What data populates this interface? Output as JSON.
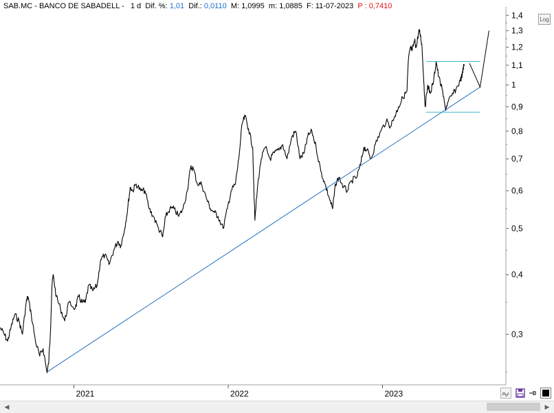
{
  "header": {
    "symbol": "SAB.MC - BANCO DE SABADELL -",
    "interval": "1 d",
    "dif_pct_label": "Dif. %:",
    "dif_pct_value": "1,01",
    "dif_label": "Dif.:",
    "dif_value": "0,0110",
    "max_label": "M:",
    "max_value": "1,0995",
    "min_label": "m:",
    "min_value": "1,0885",
    "date_label": "F:",
    "date_value": "11-07-2023",
    "p_label": "P :",
    "p_value": "0,7410"
  },
  "controls": {
    "log_button": "Log"
  },
  "colors": {
    "price_line": "#000000",
    "trendline": "#1f6fbf",
    "channel_lines": "#3fb8c6",
    "dif_value": "#1a6fd6",
    "p_value": "#e01010",
    "axis": "#a0a0a0"
  },
  "icons": {
    "zoom": "wave-icon",
    "save": "floppy-icon",
    "pin": "pin-icon",
    "color": "black-square-icon",
    "scroll_left": "chevron-left-icon",
    "scroll_right": "chevron-right-icon"
  },
  "chart_data": {
    "type": "line",
    "title": "",
    "xlabel": "",
    "ylabel": "",
    "yscale": "log",
    "ylim": [
      0.235,
      1.42
    ],
    "xlim": [
      "2020-07-10",
      "2023-10-20"
    ],
    "x_ticks": [
      "2021",
      "2022",
      "2023"
    ],
    "y_ticks": [
      "0,3",
      "0,4",
      "0,5",
      "0,6",
      "0,7",
      "0,8",
      "0,9",
      "1",
      "1,1",
      "1,2",
      "1,3",
      "1,4"
    ],
    "grid": false,
    "series": [
      {
        "points": [
          [
            "2020-07-10",
            0.31
          ],
          [
            "2020-07-20",
            0.3
          ],
          [
            "2020-07-28",
            0.29
          ],
          [
            "2020-08-05",
            0.31
          ],
          [
            "2020-08-14",
            0.33
          ],
          [
            "2020-08-24",
            0.32
          ],
          [
            "2020-09-01",
            0.3
          ],
          [
            "2020-09-10",
            0.35
          ],
          [
            "2020-09-14",
            0.36
          ],
          [
            "2020-09-22",
            0.33
          ],
          [
            "2020-10-02",
            0.29
          ],
          [
            "2020-10-12",
            0.27
          ],
          [
            "2020-10-20",
            0.28
          ],
          [
            "2020-10-29",
            0.25
          ],
          [
            "2020-11-02",
            0.26
          ],
          [
            "2020-11-06",
            0.3
          ],
          [
            "2020-11-10",
            0.38
          ],
          [
            "2020-11-13",
            0.4
          ],
          [
            "2020-11-20",
            0.36
          ],
          [
            "2020-11-30",
            0.34
          ],
          [
            "2020-12-10",
            0.32
          ],
          [
            "2020-12-20",
            0.35
          ],
          [
            "2021-01-04",
            0.34
          ],
          [
            "2021-01-12",
            0.36
          ],
          [
            "2021-01-20",
            0.35
          ],
          [
            "2021-01-28",
            0.35
          ],
          [
            "2021-02-05",
            0.38
          ],
          [
            "2021-02-15",
            0.37
          ],
          [
            "2021-02-25",
            0.38
          ],
          [
            "2021-03-05",
            0.43
          ],
          [
            "2021-03-15",
            0.44
          ],
          [
            "2021-03-25",
            0.42
          ],
          [
            "2021-04-05",
            0.45
          ],
          [
            "2021-04-15",
            0.47
          ],
          [
            "2021-04-22",
            0.46
          ],
          [
            "2021-05-01",
            0.5
          ],
          [
            "2021-05-08",
            0.55
          ],
          [
            "2021-05-14",
            0.61
          ],
          [
            "2021-05-20",
            0.6
          ],
          [
            "2021-05-28",
            0.62
          ],
          [
            "2021-06-08",
            0.6
          ],
          [
            "2021-06-18",
            0.6
          ],
          [
            "2021-06-28",
            0.55
          ],
          [
            "2021-07-08",
            0.53
          ],
          [
            "2021-07-20",
            0.5
          ],
          [
            "2021-07-30",
            0.48
          ],
          [
            "2021-08-06",
            0.53
          ],
          [
            "2021-08-16",
            0.55
          ],
          [
            "2021-08-26",
            0.55
          ],
          [
            "2021-09-06",
            0.53
          ],
          [
            "2021-09-16",
            0.55
          ],
          [
            "2021-09-26",
            0.6
          ],
          [
            "2021-10-04",
            0.67
          ],
          [
            "2021-10-10",
            0.67
          ],
          [
            "2021-10-20",
            0.62
          ],
          [
            "2021-10-30",
            0.62
          ],
          [
            "2021-11-10",
            0.58
          ],
          [
            "2021-11-20",
            0.55
          ],
          [
            "2021-11-30",
            0.54
          ],
          [
            "2021-12-08",
            0.53
          ],
          [
            "2021-12-20",
            0.5
          ],
          [
            "2021-12-30",
            0.55
          ],
          [
            "2022-01-08",
            0.6
          ],
          [
            "2022-01-18",
            0.62
          ],
          [
            "2022-01-26",
            0.7
          ],
          [
            "2022-02-03",
            0.83
          ],
          [
            "2022-02-10",
            0.86
          ],
          [
            "2022-02-18",
            0.81
          ],
          [
            "2022-02-28",
            0.74
          ],
          [
            "2022-03-05",
            0.52
          ],
          [
            "2022-03-12",
            0.62
          ],
          [
            "2022-03-20",
            0.7
          ],
          [
            "2022-03-30",
            0.74
          ],
          [
            "2022-04-10",
            0.7
          ],
          [
            "2022-04-20",
            0.72
          ],
          [
            "2022-05-01",
            0.73
          ],
          [
            "2022-05-10",
            0.75
          ],
          [
            "2022-05-20",
            0.7
          ],
          [
            "2022-06-01",
            0.78
          ],
          [
            "2022-06-10",
            0.8
          ],
          [
            "2022-06-20",
            0.7
          ],
          [
            "2022-06-30",
            0.72
          ],
          [
            "2022-07-08",
            0.78
          ],
          [
            "2022-07-18",
            0.8
          ],
          [
            "2022-07-28",
            0.74
          ],
          [
            "2022-08-08",
            0.66
          ],
          [
            "2022-08-18",
            0.62
          ],
          [
            "2022-08-28",
            0.58
          ],
          [
            "2022-09-05",
            0.55
          ],
          [
            "2022-09-12",
            0.62
          ],
          [
            "2022-09-20",
            0.64
          ],
          [
            "2022-10-01",
            0.61
          ],
          [
            "2022-10-10",
            0.6
          ],
          [
            "2022-10-20",
            0.63
          ],
          [
            "2022-11-01",
            0.64
          ],
          [
            "2022-11-10",
            0.68
          ],
          [
            "2022-11-18",
            0.74
          ],
          [
            "2022-11-25",
            0.73
          ],
          [
            "2022-12-05",
            0.7
          ],
          [
            "2022-12-15",
            0.75
          ],
          [
            "2022-12-28",
            0.8
          ],
          [
            "2023-01-10",
            0.84
          ],
          [
            "2023-01-20",
            0.82
          ],
          [
            "2023-01-30",
            0.86
          ],
          [
            "2023-02-08",
            0.9
          ],
          [
            "2023-02-18",
            0.94
          ],
          [
            "2023-02-28",
            0.97
          ],
          [
            "2023-03-03",
            1.12
          ],
          [
            "2023-03-08",
            1.2
          ],
          [
            "2023-03-12",
            1.18
          ],
          [
            "2023-03-18",
            1.24
          ],
          [
            "2023-03-22",
            1.2
          ],
          [
            "2023-03-28",
            1.3
          ],
          [
            "2023-03-31",
            1.28
          ],
          [
            "2023-04-04",
            1.22
          ],
          [
            "2023-04-08",
            1.05
          ],
          [
            "2023-04-12",
            0.9
          ],
          [
            "2023-04-18",
            1.0
          ],
          [
            "2023-04-24",
            0.96
          ],
          [
            "2023-05-02",
            1.02
          ],
          [
            "2023-05-08",
            1.12
          ],
          [
            "2023-05-14",
            1.04
          ],
          [
            "2023-05-22",
            0.98
          ],
          [
            "2023-05-30",
            0.89
          ],
          [
            "2023-06-05",
            0.92
          ],
          [
            "2023-06-14",
            0.95
          ],
          [
            "2023-06-24",
            0.98
          ],
          [
            "2023-07-04",
            1.02
          ],
          [
            "2023-07-10",
            1.06
          ],
          [
            "2023-07-11",
            1.09
          ],
          [
            "2023-07-14",
            1.1
          ]
        ]
      }
    ],
    "annotations": {
      "trendline": [
        [
          "2020-10-29",
          0.25
        ],
        [
          "2023-08-20",
          0.99
        ]
      ],
      "channel_top": [
        [
          "2023-04-14",
          1.12
        ],
        [
          "2023-08-20",
          1.12
        ]
      ],
      "channel_bottom": [
        [
          "2023-04-14",
          0.877
        ],
        [
          "2023-08-20",
          0.877
        ]
      ],
      "projection": [
        [
          "2023-07-26",
          1.11
        ],
        [
          "2023-08-20",
          0.99
        ],
        [
          "2023-09-10",
          1.3
        ]
      ]
    }
  }
}
